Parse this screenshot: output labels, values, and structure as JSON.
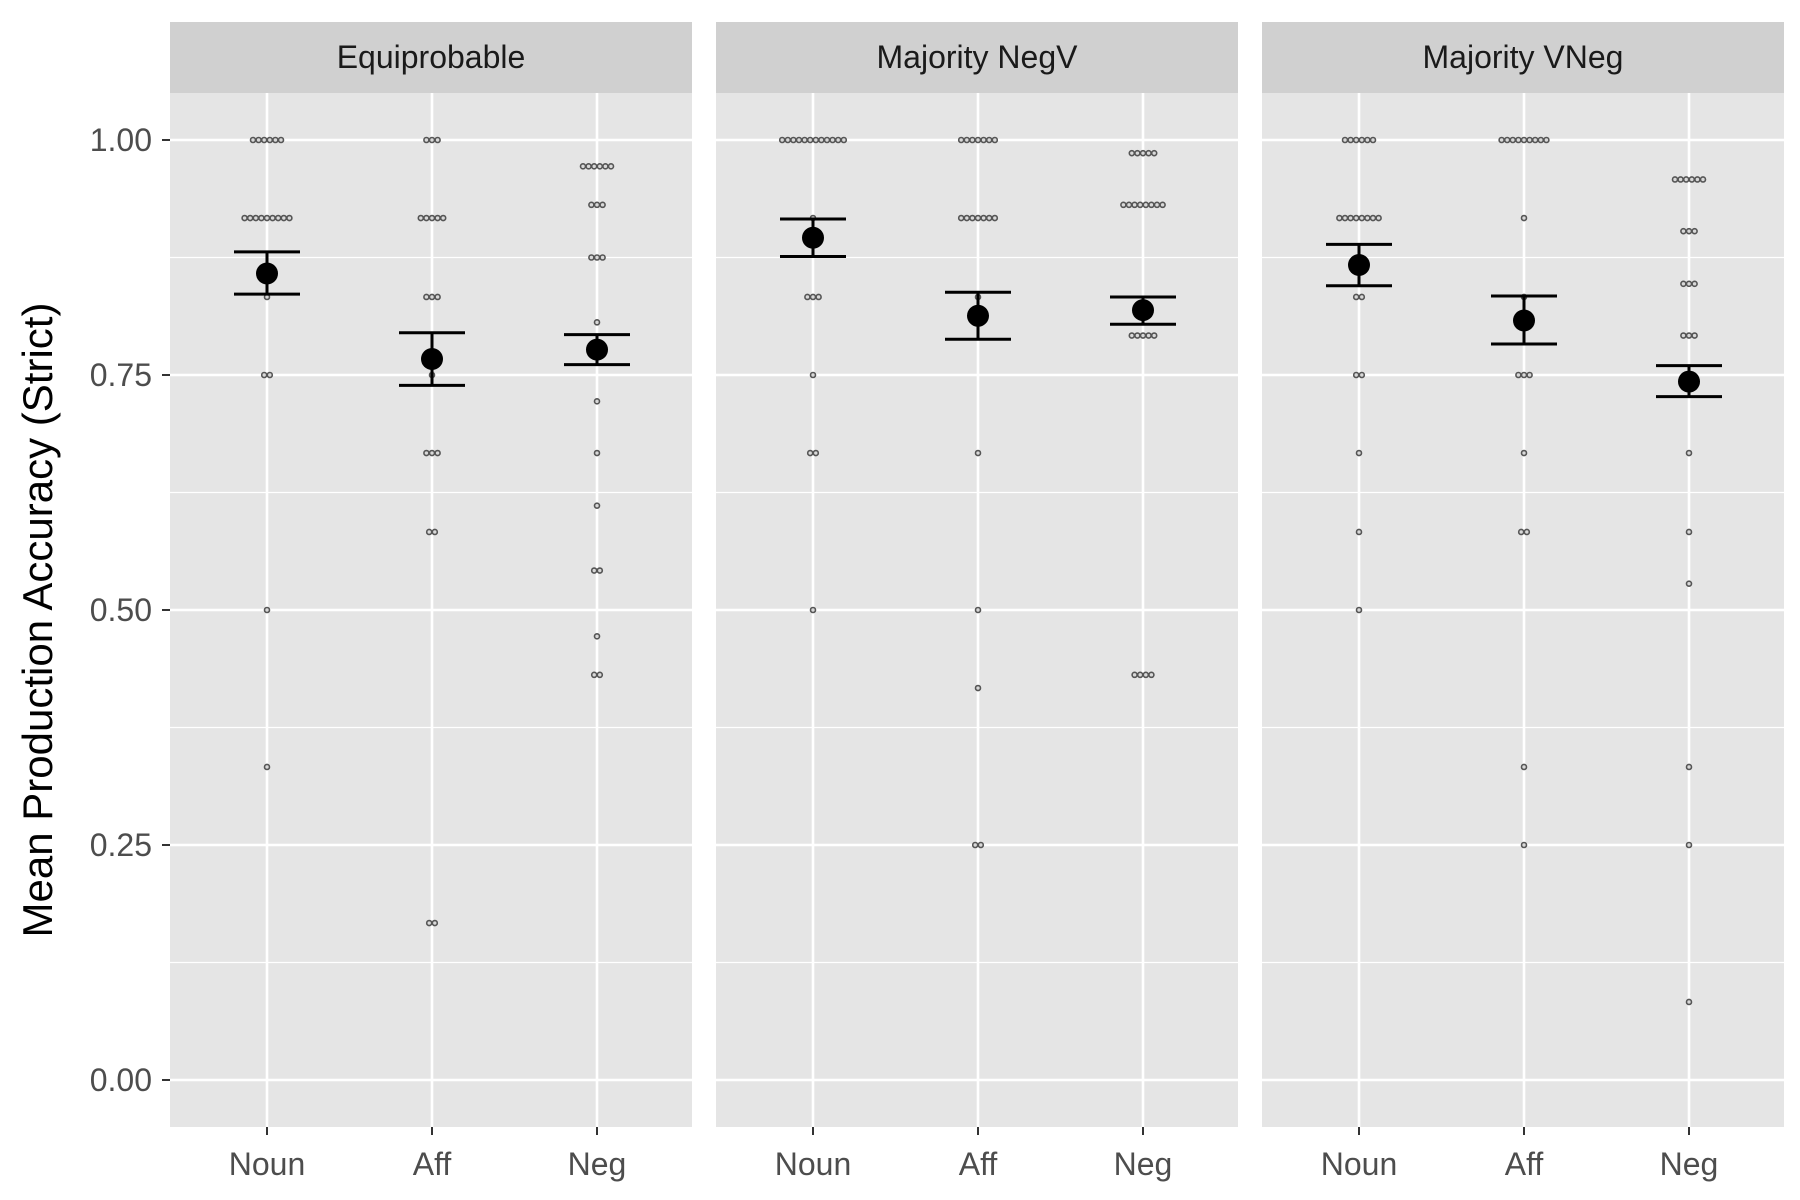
{
  "chart_data": {
    "type": "scatter",
    "ylabel": "Mean Production Accuracy (Strict)",
    "xlabel": "",
    "ylim": [
      -0.05,
      1.05
    ],
    "y_ticks": [
      "0.00",
      "0.25",
      "0.50",
      "0.75",
      "1.00"
    ],
    "categories": [
      "Noun",
      "Aff",
      "Neg"
    ],
    "grid": true,
    "colors": {
      "panel_bg": "#e5e5e5",
      "strip_bg": "#d0d0d0",
      "grid": "#ffffff",
      "points": "#555555",
      "summary": "#000000"
    },
    "panels": [
      {
        "title": "Equiprobable",
        "groups": [
          {
            "category": "Noun",
            "mean": 0.858,
            "err_low": 0.836,
            "err_high": 0.881,
            "points": [
              {
                "y": 1.0,
                "n": 6
              },
              {
                "y": 0.917,
                "n": 9
              },
              {
                "y": 0.833,
                "n": 1
              },
              {
                "y": 0.75,
                "n": 2
              },
              {
                "y": 0.5,
                "n": 1
              },
              {
                "y": 0.333,
                "n": 1
              }
            ]
          },
          {
            "category": "Aff",
            "mean": 0.767,
            "err_low": 0.739,
            "err_high": 0.795,
            "points": [
              {
                "y": 1.0,
                "n": 3
              },
              {
                "y": 0.917,
                "n": 5
              },
              {
                "y": 0.833,
                "n": 3
              },
              {
                "y": 0.75,
                "n": 1
              },
              {
                "y": 0.667,
                "n": 3
              },
              {
                "y": 0.583,
                "n": 2
              },
              {
                "y": 0.167,
                "n": 2
              }
            ]
          },
          {
            "category": "Neg",
            "mean": 0.777,
            "err_low": 0.761,
            "err_high": 0.793,
            "points": [
              {
                "y": 0.972,
                "n": 6
              },
              {
                "y": 0.931,
                "n": 3
              },
              {
                "y": 0.875,
                "n": 3
              },
              {
                "y": 0.806,
                "n": 1
              },
              {
                "y": 0.722,
                "n": 1
              },
              {
                "y": 0.667,
                "n": 1
              },
              {
                "y": 0.611,
                "n": 1
              },
              {
                "y": 0.542,
                "n": 2
              },
              {
                "y": 0.472,
                "n": 1
              },
              {
                "y": 0.431,
                "n": 2
              }
            ]
          }
        ]
      },
      {
        "title": "Majority NegV",
        "groups": [
          {
            "category": "Noun",
            "mean": 0.896,
            "err_low": 0.876,
            "err_high": 0.916,
            "points": [
              {
                "y": 1.0,
                "n": 12
              },
              {
                "y": 0.917,
                "n": 1
              },
              {
                "y": 0.833,
                "n": 3
              },
              {
                "y": 0.75,
                "n": 1
              },
              {
                "y": 0.667,
                "n": 2
              },
              {
                "y": 0.5,
                "n": 1
              }
            ]
          },
          {
            "category": "Aff",
            "mean": 0.813,
            "err_low": 0.788,
            "err_high": 0.838,
            "points": [
              {
                "y": 1.0,
                "n": 7
              },
              {
                "y": 0.917,
                "n": 7
              },
              {
                "y": 0.833,
                "n": 1
              },
              {
                "y": 0.667,
                "n": 1
              },
              {
                "y": 0.5,
                "n": 1
              },
              {
                "y": 0.417,
                "n": 1
              },
              {
                "y": 0.25,
                "n": 2
              }
            ]
          },
          {
            "category": "Neg",
            "mean": 0.819,
            "err_low": 0.804,
            "err_high": 0.833,
            "points": [
              {
                "y": 0.986,
                "n": 5
              },
              {
                "y": 0.931,
                "n": 8
              },
              {
                "y": 0.792,
                "n": 5
              },
              {
                "y": 0.431,
                "n": 4
              }
            ]
          }
        ]
      },
      {
        "title": "Majority VNeg",
        "groups": [
          {
            "category": "Noun",
            "mean": 0.867,
            "err_low": 0.845,
            "err_high": 0.889,
            "points": [
              {
                "y": 1.0,
                "n": 6
              },
              {
                "y": 0.917,
                "n": 8
              },
              {
                "y": 0.833,
                "n": 2
              },
              {
                "y": 0.75,
                "n": 2
              },
              {
                "y": 0.667,
                "n": 1
              },
              {
                "y": 0.583,
                "n": 1
              },
              {
                "y": 0.5,
                "n": 1
              }
            ]
          },
          {
            "category": "Aff",
            "mean": 0.808,
            "err_low": 0.783,
            "err_high": 0.834,
            "points": [
              {
                "y": 1.0,
                "n": 9
              },
              {
                "y": 0.917,
                "n": 1
              },
              {
                "y": 0.833,
                "n": 1
              },
              {
                "y": 0.75,
                "n": 3
              },
              {
                "y": 0.667,
                "n": 1
              },
              {
                "y": 0.583,
                "n": 2
              },
              {
                "y": 0.333,
                "n": 1
              },
              {
                "y": 0.25,
                "n": 1
              }
            ]
          },
          {
            "category": "Neg",
            "mean": 0.743,
            "err_low": 0.727,
            "err_high": 0.76,
            "points": [
              {
                "y": 0.958,
                "n": 6
              },
              {
                "y": 0.903,
                "n": 3
              },
              {
                "y": 0.847,
                "n": 3
              },
              {
                "y": 0.792,
                "n": 3
              },
              {
                "y": 0.667,
                "n": 1
              },
              {
                "y": 0.583,
                "n": 1
              },
              {
                "y": 0.528,
                "n": 1
              },
              {
                "y": 0.333,
                "n": 1
              },
              {
                "y": 0.25,
                "n": 1
              },
              {
                "y": 0.083,
                "n": 1
              }
            ]
          }
        ]
      }
    ]
  }
}
